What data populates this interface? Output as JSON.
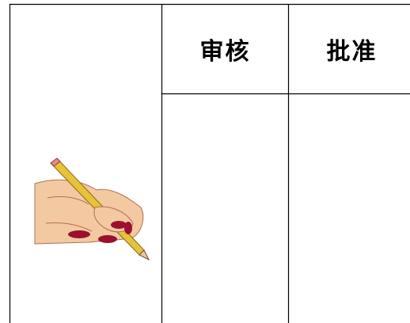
{
  "table": {
    "headers": [
      "审核",
      "批准"
    ]
  }
}
